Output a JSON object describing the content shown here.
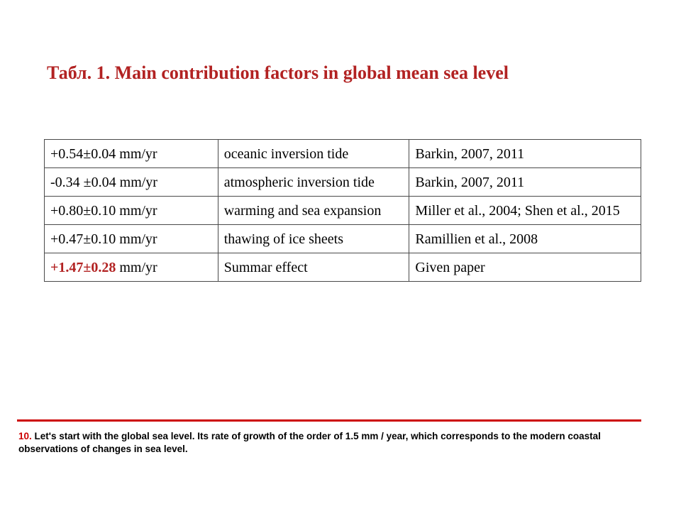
{
  "title": "Табл. 1. Main contribution factors in global mean sea level",
  "colors": {
    "title": "#b22222",
    "divider": "#cc0000",
    "note_number": "#cc0000",
    "highlight_rate": "#b22222"
  },
  "table": {
    "rows": [
      {
        "rate": "+0.54±0.04 mm/yr",
        "factor": "oceanic inversion tide",
        "source": "Barkin, 2007, 2011"
      },
      {
        "rate": "-0.34 ±0.04 mm/yr",
        "factor": "atmospheric inversion tide",
        "source": "Barkin, 2007, 2011"
      },
      {
        "rate": "+0.80±0.10 mm/yr",
        "factor": "warming and sea expansion",
        "source": "Miller et al., 2004; Shen et al., 2015"
      },
      {
        "rate": "+0.47±0.10 mm/yr",
        "factor": "thawing of ice sheets",
        "source": "Ramillien et al., 2008"
      },
      {
        "rate_value": "+1.47±0.28",
        "rate_unit": " mm/yr",
        "factor": "Summar effect",
        "source": "Given paper"
      }
    ]
  },
  "note": {
    "number": "10.",
    "text": " Let's start with the global sea level. Its rate of growth of the order of 1.5 mm / year, which corresponds to the modern coastal observations of changes in sea level."
  }
}
